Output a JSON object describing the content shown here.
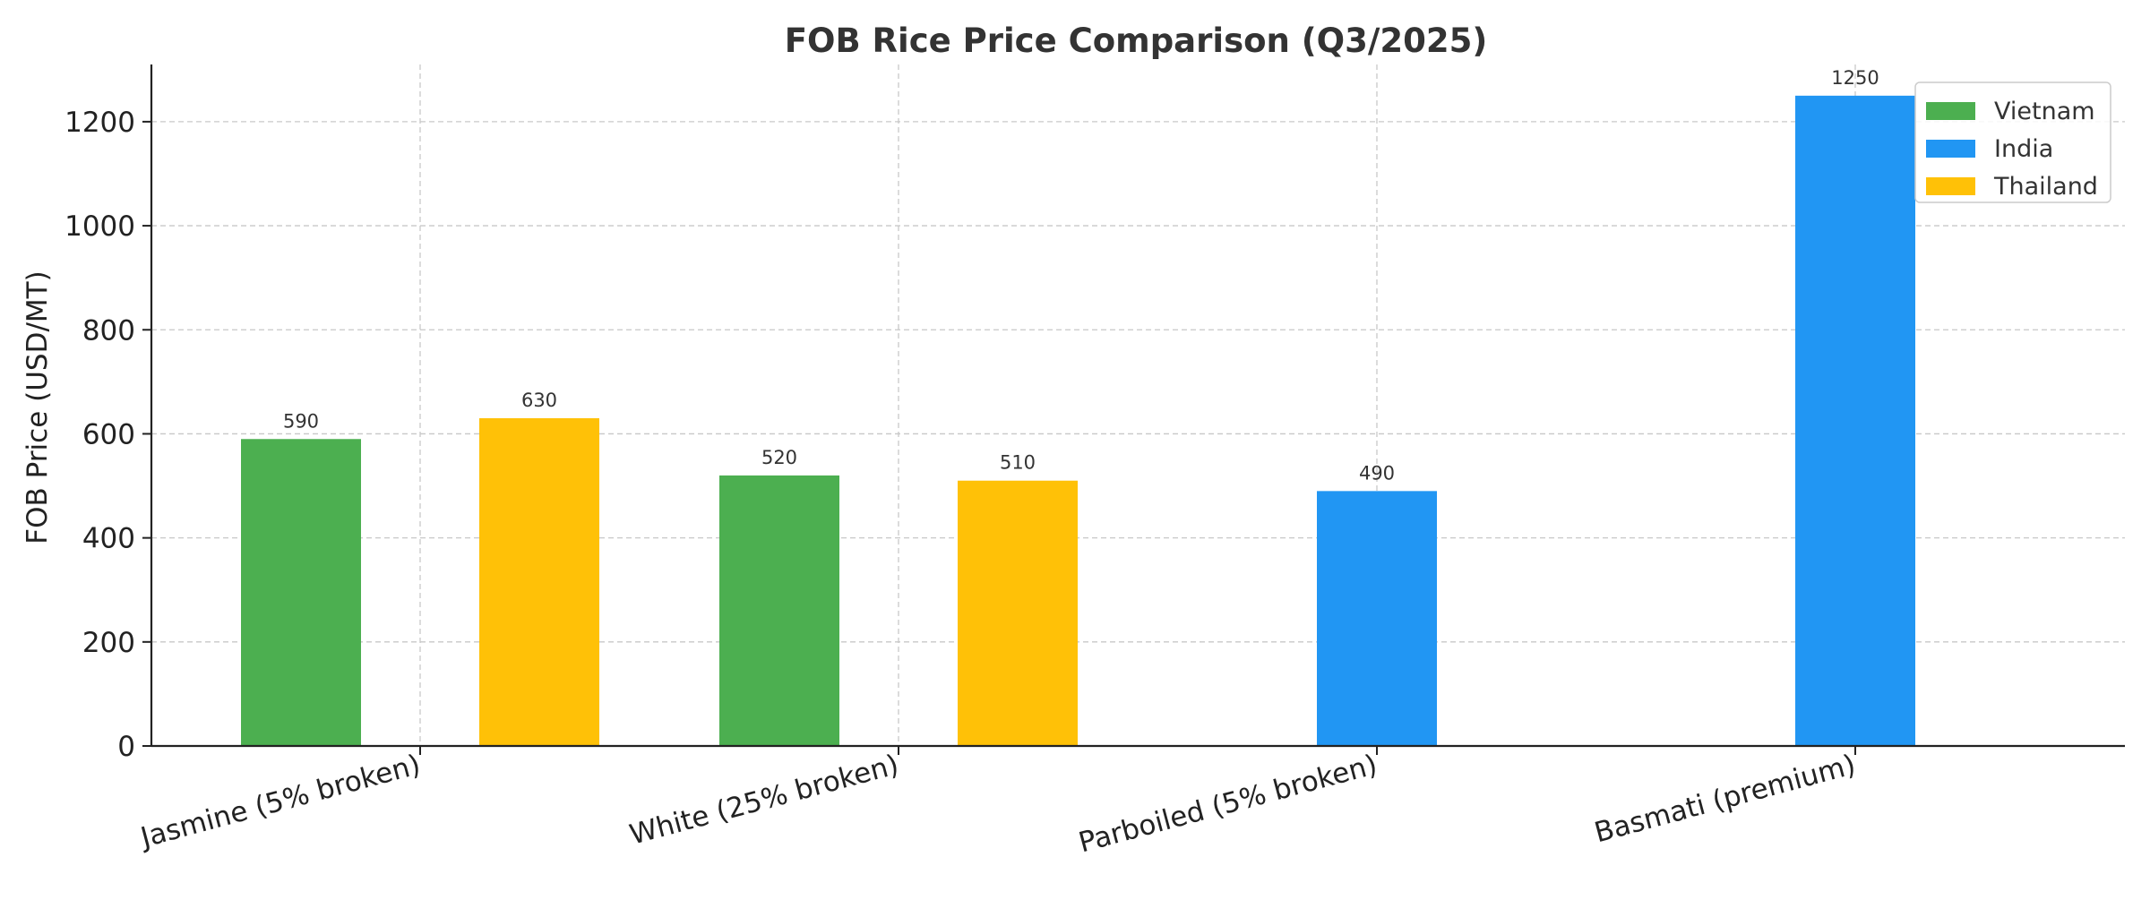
{
  "chart_data": {
    "type": "bar",
    "title": "FOB Rice Price Comparison (Q3/2025)",
    "xlabel": "",
    "ylabel": "FOB Price (USD/MT)",
    "ylim": [
      0,
      1310
    ],
    "yticks": [
      0,
      200,
      400,
      600,
      800,
      1000,
      1200
    ],
    "grid": true,
    "legend_position": "top-right",
    "categories": [
      "Jasmine (5% broken)",
      "White (25% broken)",
      "Parboiled (5% broken)",
      "Basmati (premium)"
    ],
    "series": [
      {
        "name": "Vietnam",
        "color": "#4caf50",
        "values": [
          590,
          520,
          null,
          null
        ]
      },
      {
        "name": "India",
        "color": "#2196f3",
        "values": [
          null,
          null,
          490,
          1250
        ]
      },
      {
        "name": "Thailand",
        "color": "#ffc107",
        "values": [
          630,
          510,
          null,
          null
        ]
      }
    ]
  }
}
